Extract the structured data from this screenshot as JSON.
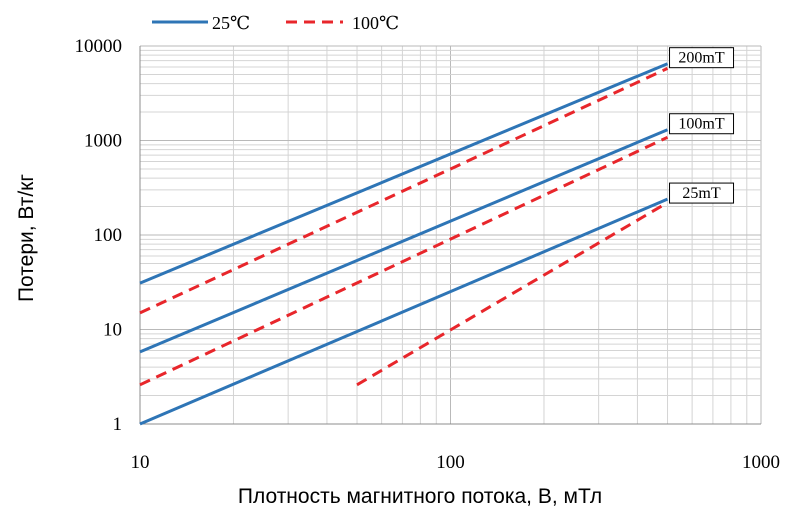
{
  "chart_data": {
    "type": "line",
    "xscale": "log",
    "yscale": "log",
    "xlim": [
      10,
      1000
    ],
    "ylim": [
      1,
      10000
    ],
    "xlabel": "Плотность магнитного потока, B,  мТл",
    "ylabel": "Потери, Вт/кг",
    "x_ticks": [
      "10",
      "100",
      "1000"
    ],
    "y_ticks": [
      "1",
      "10",
      "100",
      "1000",
      "10000"
    ],
    "grid": true,
    "legend_position": "top-left",
    "legend": [
      {
        "label": "25℃",
        "color": "#2e75b6",
        "style": "solid"
      },
      {
        "label": "100℃",
        "color": "#e8262b",
        "style": "dashed"
      }
    ],
    "series": [
      {
        "temp": "25℃",
        "group": "200mT",
        "color": "#2e75b6",
        "dash": false,
        "points": [
          [
            10,
            31
          ],
          [
            500,
            6500
          ]
        ]
      },
      {
        "temp": "100℃",
        "group": "200mT",
        "color": "#e8262b",
        "dash": true,
        "points": [
          [
            10,
            15
          ],
          [
            500,
            5800
          ]
        ]
      },
      {
        "temp": "25℃",
        "group": "100mT",
        "color": "#2e75b6",
        "dash": false,
        "points": [
          [
            10,
            5.8
          ],
          [
            500,
            1300
          ]
        ]
      },
      {
        "temp": "100℃",
        "group": "100mT",
        "color": "#e8262b",
        "dash": true,
        "points": [
          [
            10,
            2.6
          ],
          [
            500,
            1080
          ]
        ]
      },
      {
        "temp": "25℃",
        "group": "25mT",
        "color": "#2e75b6",
        "dash": false,
        "points": [
          [
            10,
            1.0
          ],
          [
            500,
            240
          ]
        ]
      },
      {
        "temp": "100℃",
        "group": "25mT",
        "color": "#e8262b",
        "dash": true,
        "points": [
          [
            50,
            2.6
          ],
          [
            500,
            220
          ]
        ]
      }
    ],
    "annotations": [
      {
        "text": "200mT",
        "x": 500,
        "y": 6500
      },
      {
        "text": "100mT",
        "x": 500,
        "y": 1300
      },
      {
        "text": "25mT",
        "x": 500,
        "y": 240
      }
    ]
  }
}
